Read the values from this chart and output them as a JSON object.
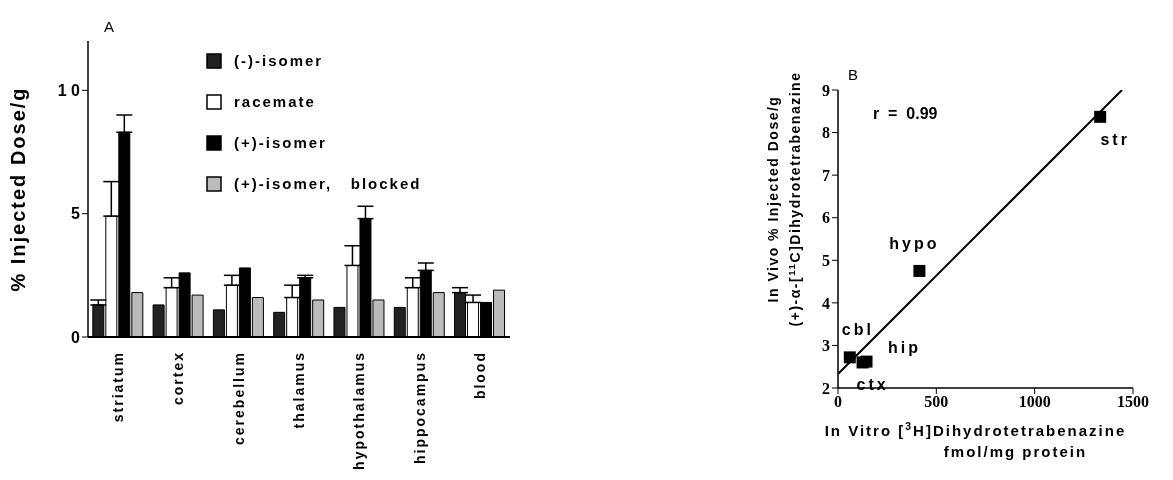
{
  "chart_data": [
    {
      "type": "bar",
      "title": "A",
      "ylabel": "% Injected Dose/g",
      "categories": [
        "striatum",
        "cortex",
        "cerebellum",
        "thalamus",
        "hypothalamus",
        "hippocampus",
        "blood"
      ],
      "ylim": [
        0,
        12
      ],
      "yticks": [
        0,
        {
          "value": 5,
          "label": "5"
        },
        {
          "value": 10,
          "label": "1 0"
        }
      ],
      "legend": "top",
      "series": [
        {
          "name": "(-)-isomer",
          "color": "#222222",
          "values": [
            1.3,
            1.3,
            1.1,
            1.0,
            1.2,
            1.2,
            1.8
          ],
          "errors": [
            [
              1.3,
              1.5
            ],
            null,
            null,
            null,
            null,
            null,
            [
              1.8,
              2.0
            ]
          ]
        },
        {
          "name": "racemate",
          "color": "#ffffff",
          "values": [
            4.9,
            2.0,
            2.1,
            1.6,
            2.9,
            2.0,
            1.4
          ],
          "errors": [
            [
              4.9,
              6.3
            ],
            [
              2.0,
              2.4
            ],
            [
              2.1,
              2.5
            ],
            [
              1.6,
              2.1
            ],
            [
              2.9,
              3.7
            ],
            [
              2.0,
              2.4
            ],
            [
              1.4,
              1.7
            ]
          ]
        },
        {
          "name": "(+)-isomer",
          "color": "#000000",
          "values": [
            8.3,
            2.6,
            2.8,
            2.4,
            4.8,
            2.7,
            1.4
          ],
          "errors": [
            [
              8.3,
              9.0
            ],
            null,
            null,
            [
              2.4,
              2.5
            ],
            [
              4.8,
              5.3
            ],
            [
              2.7,
              3.0
            ],
            null
          ]
        },
        {
          "name": "(+)-isomer,   blocked",
          "color": "#bbbbbb",
          "values": [
            1.8,
            1.7,
            1.6,
            1.5,
            1.5,
            1.8,
            1.9
          ]
        }
      ]
    },
    {
      "type": "scatter",
      "title": "B",
      "xlabel": "In Vitro [$^{3}$H]Dihydrotetrabenazine\nfmol/mg protein",
      "ylabel": "In Vivo % Injected Dose/g\n(+)-α-[$^{11}$C]Dihydrotetrabenazine",
      "xlim": [
        0,
        1500
      ],
      "xticks": [
        0,
        500,
        1000,
        1500
      ],
      "ylim": [
        2,
        9
      ],
      "yticks": [
        2,
        3,
        4,
        5,
        6,
        7,
        8,
        9
      ],
      "series": [
        {
          "type": "scatter",
          "color": "#000000",
          "marker": "square",
          "x": [
            1333,
            414,
            60,
            125,
            145
          ],
          "values": [
            8.37,
            4.75,
            2.72,
            2.6,
            2.62
          ]
        },
        {
          "type": "line",
          "color": "#000000",
          "x": [
            0,
            1444
          ],
          "values": [
            2.33,
            9
          ]
        }
      ],
      "annotations": [
        "r  =  0.99",
        {
          "text": "str",
          "x": 1333,
          "y": 8.37
        },
        {
          "text": "hypo",
          "x": 414,
          "y": 4.75
        },
        {
          "text": "cbl",
          "x": 60,
          "y": 2.72
        },
        {
          "text": "hip",
          "x": 145,
          "y": 2.62
        },
        {
          "text": "ctx",
          "x": 125,
          "y": 2.6
        }
      ]
    }
  ]
}
